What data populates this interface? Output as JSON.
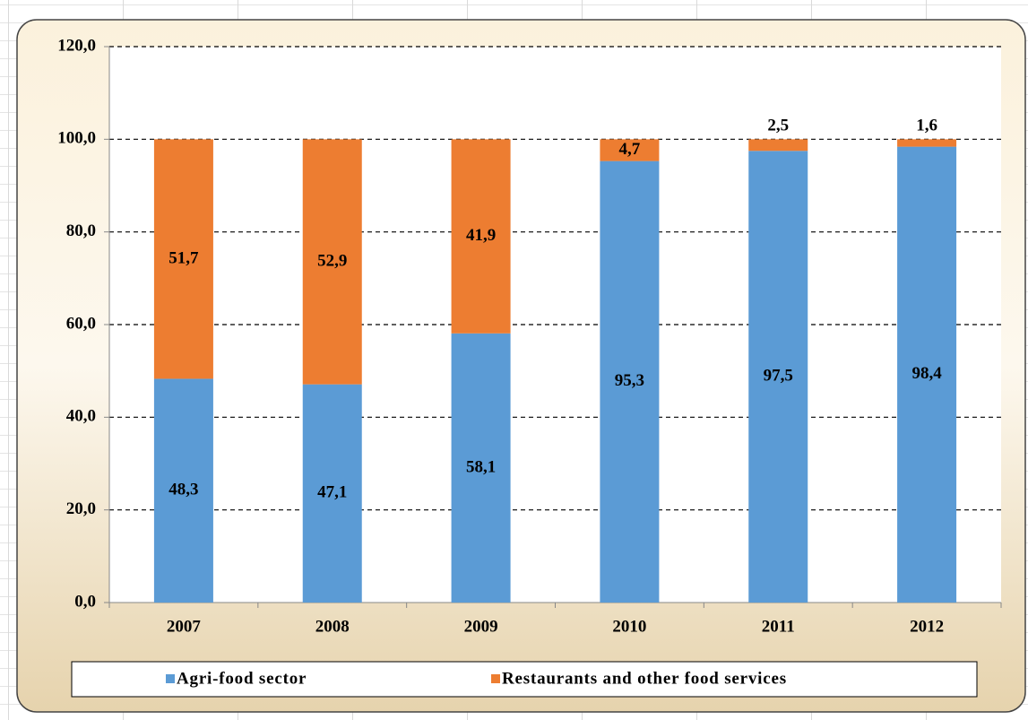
{
  "chart_data": {
    "type": "stacked-bar",
    "categories": [
      "2007",
      "2008",
      "2009",
      "2010",
      "2011",
      "2012"
    ],
    "series": [
      {
        "name": "Agri-food sector",
        "color": "#5b9bd5",
        "values": [
          48.3,
          47.1,
          58.1,
          95.3,
          97.5,
          98.4
        ],
        "value_labels": [
          "48,3",
          "47,1",
          "58,1",
          "95,3",
          "97,5",
          "98,4"
        ]
      },
      {
        "name": "Restaurants and other food services",
        "color": "#ed7d31",
        "values": [
          51.7,
          52.9,
          41.9,
          4.7,
          2.5,
          1.6
        ],
        "value_labels": [
          "51,7",
          "52,9",
          "41,9",
          "4,7",
          "2,5",
          "1,6"
        ]
      }
    ],
    "ylim": [
      0,
      120
    ],
    "yticks": [
      {
        "value": 0,
        "label": "0,0"
      },
      {
        "value": 20,
        "label": "20,0"
      },
      {
        "value": 40,
        "label": "40,0"
      },
      {
        "value": 60,
        "label": "60,0"
      },
      {
        "value": 80,
        "label": "80,0"
      },
      {
        "value": 100,
        "label": "100,0"
      },
      {
        "value": 120,
        "label": "120,0"
      }
    ],
    "grid": true,
    "legend": "bottom"
  }
}
